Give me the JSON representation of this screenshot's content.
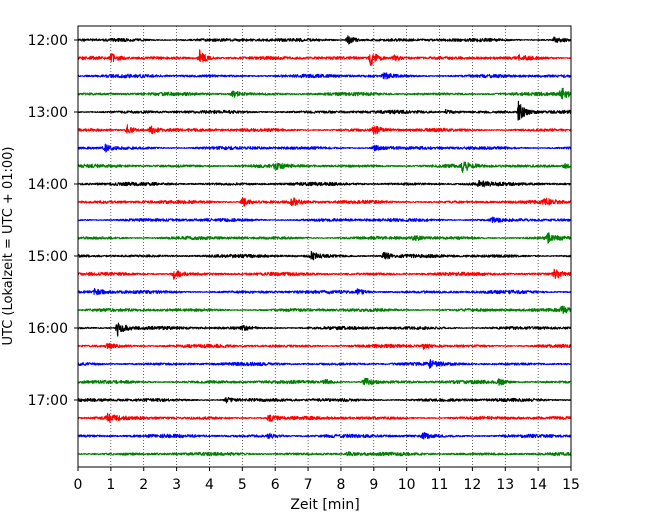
{
  "chart_data": {
    "type": "line",
    "title": "",
    "xlabel": "Zeit  [min]",
    "ylabel": "UTC (Lokalzeit = UTC + 01:00)",
    "xlim": [
      0,
      15
    ],
    "x_ticks": [
      "0",
      "1",
      "2",
      "3",
      "4",
      "5",
      "6",
      "7",
      "8",
      "9",
      "10",
      "11",
      "12",
      "13",
      "14",
      "15"
    ],
    "y_ticks": [
      {
        "row": 0,
        "label": "12:00"
      },
      {
        "row": 4,
        "label": "13:00"
      },
      {
        "row": 8,
        "label": "14:00"
      },
      {
        "row": 12,
        "label": "15:00"
      },
      {
        "row": 16,
        "label": "16:00"
      },
      {
        "row": 20,
        "label": "17:00"
      }
    ],
    "grid": "vertical dotted at each minute",
    "trace_colors": [
      "#000000",
      "#ff0000",
      "#0000ff",
      "#008000"
    ],
    "traces": [
      {
        "start": "12:00",
        "color_index": 0,
        "events": [
          {
            "t": 8.2,
            "a": 5
          },
          {
            "t": 14.5,
            "a": 4
          }
        ]
      },
      {
        "start": "12:15",
        "color_index": 1,
        "events": [
          {
            "t": 1.0,
            "a": 4
          },
          {
            "t": 3.7,
            "a": 8
          },
          {
            "t": 8.9,
            "a": 8
          },
          {
            "t": 9.6,
            "a": 4
          },
          {
            "t": 13.4,
            "a": 3
          }
        ]
      },
      {
        "start": "12:30",
        "color_index": 2,
        "events": [
          {
            "t": 9.3,
            "a": 3
          }
        ]
      },
      {
        "start": "12:45",
        "color_index": 3,
        "events": [
          {
            "t": 4.7,
            "a": 4
          },
          {
            "t": 14.7,
            "a": 7
          }
        ]
      },
      {
        "start": "13:00",
        "color_index": 0,
        "events": [
          {
            "t": 13.4,
            "a": 10
          },
          {
            "t": 11.2,
            "a": 3
          }
        ]
      },
      {
        "start": "13:15",
        "color_index": 1,
        "events": [
          {
            "t": 1.5,
            "a": 5
          },
          {
            "t": 2.2,
            "a": 4
          },
          {
            "t": 9.0,
            "a": 4
          }
        ]
      },
      {
        "start": "13:30",
        "color_index": 2,
        "events": [
          {
            "t": 0.8,
            "a": 4
          },
          {
            "t": 9.0,
            "a": 3
          }
        ]
      },
      {
        "start": "13:45",
        "color_index": 3,
        "events": [
          {
            "t": 6.0,
            "a": 3
          },
          {
            "t": 11.7,
            "a": 6
          },
          {
            "t": 14.8,
            "a": 3
          }
        ]
      },
      {
        "start": "14:00",
        "color_index": 0,
        "events": [
          {
            "t": 12.2,
            "a": 3
          }
        ]
      },
      {
        "start": "14:15",
        "color_index": 1,
        "events": [
          {
            "t": 5.0,
            "a": 5
          },
          {
            "t": 6.5,
            "a": 5
          },
          {
            "t": 14.2,
            "a": 3
          }
        ]
      },
      {
        "start": "14:30",
        "color_index": 2,
        "events": [
          {
            "t": 12.6,
            "a": 3
          }
        ]
      },
      {
        "start": "14:45",
        "color_index": 3,
        "events": [
          {
            "t": 10.2,
            "a": 3
          },
          {
            "t": 14.3,
            "a": 5
          }
        ]
      },
      {
        "start": "15:00",
        "color_index": 0,
        "events": [
          {
            "t": 7.1,
            "a": 4
          },
          {
            "t": 9.3,
            "a": 4
          }
        ]
      },
      {
        "start": "15:15",
        "color_index": 1,
        "events": [
          {
            "t": 2.9,
            "a": 5
          },
          {
            "t": 14.5,
            "a": 5
          }
        ]
      },
      {
        "start": "15:30",
        "color_index": 2,
        "events": [
          {
            "t": 0.5,
            "a": 4
          },
          {
            "t": 8.5,
            "a": 3
          }
        ]
      },
      {
        "start": "15:45",
        "color_index": 3,
        "events": [
          {
            "t": 14.7,
            "a": 3
          }
        ]
      },
      {
        "start": "16:00",
        "color_index": 0,
        "events": [
          {
            "t": 1.2,
            "a": 8
          },
          {
            "t": 5.0,
            "a": 2
          }
        ]
      },
      {
        "start": "16:15",
        "color_index": 1,
        "events": [
          {
            "t": 0.9,
            "a": 3
          },
          {
            "t": 10.5,
            "a": 3
          }
        ]
      },
      {
        "start": "16:30",
        "color_index": 2,
        "events": [
          {
            "t": 10.7,
            "a": 3
          }
        ]
      },
      {
        "start": "16:45",
        "color_index": 3,
        "events": [
          {
            "t": 7.5,
            "a": 3
          },
          {
            "t": 8.7,
            "a": 5
          },
          {
            "t": 12.8,
            "a": 3
          }
        ]
      },
      {
        "start": "17:00",
        "color_index": 0,
        "events": [
          {
            "t": 4.5,
            "a": 3
          }
        ]
      },
      {
        "start": "17:15",
        "color_index": 1,
        "events": [
          {
            "t": 0.9,
            "a": 4
          },
          {
            "t": 5.8,
            "a": 4
          }
        ]
      },
      {
        "start": "17:30",
        "color_index": 2,
        "events": [
          {
            "t": 5.8,
            "a": 3
          },
          {
            "t": 10.5,
            "a": 3
          }
        ]
      },
      {
        "start": "17:45",
        "color_index": 3,
        "events": [
          {
            "t": 8.2,
            "a": 2
          }
        ]
      }
    ]
  }
}
